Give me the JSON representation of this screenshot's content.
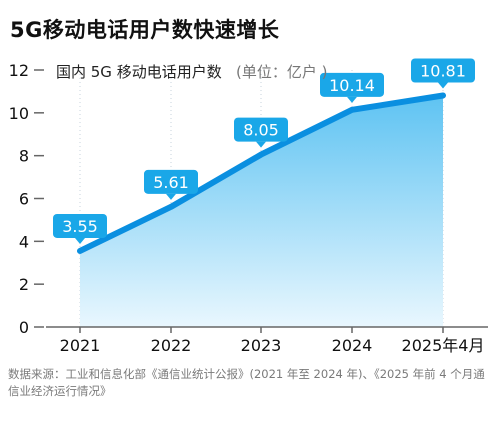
{
  "title": "5G移动电话用户数快速增长",
  "source_note": "数据来源：工业和信息化部《通信业统计公报》(2021 年至 2024 年)、《2025 年前 4 个月通信业经济运行情况》",
  "colors": {
    "line": "#0a8fe0",
    "area_top": "#5ec3f2",
    "area_bottom": "#e9f7fe",
    "label_bg": "#1aa7e8",
    "axis": "#666666",
    "text": "#111111",
    "grid": "#c7d3dc"
  },
  "chart_data": {
    "type": "area",
    "series_label": "国内 5G 移动电话用户数",
    "unit_label": "(单位：亿户 )",
    "categories": [
      "2021",
      "2022",
      "2023",
      "2024",
      "2025年4月"
    ],
    "values": [
      3.55,
      5.61,
      8.05,
      10.14,
      10.81
    ],
    "value_labels": [
      "3.55",
      "5.61",
      "8.05",
      "10.14",
      "10.81"
    ],
    "yticks": [
      "0",
      "2",
      "4",
      "6",
      "8",
      "10",
      "12"
    ],
    "ylim": [
      0,
      12
    ],
    "grid": "vertical dotted"
  }
}
